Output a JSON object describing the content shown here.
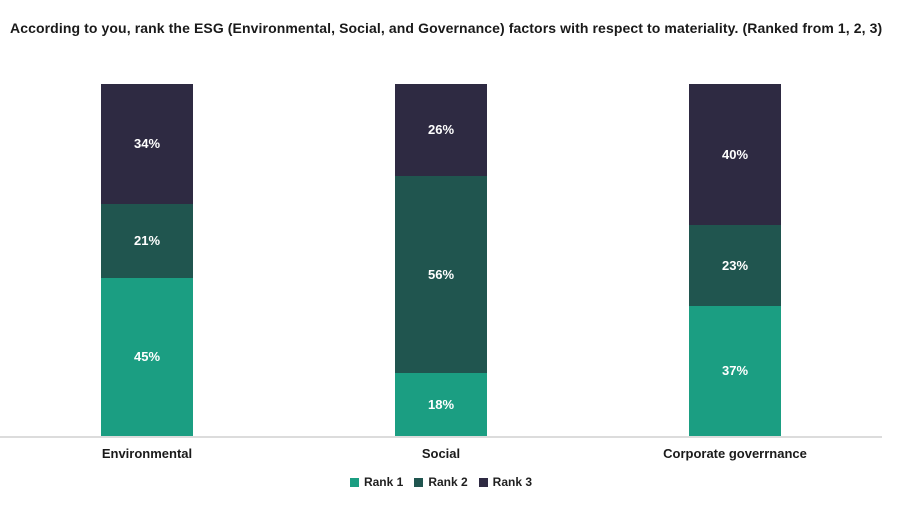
{
  "chart_data": {
    "type": "bar",
    "subtype": "stacked-column-100",
    "title": "According to you, rank the ESG (Environmental, Social, and Governance) factors with respect to materiality. (Ranked from 1, 2, 3)",
    "categories": [
      "Environmental",
      "Social",
      "Corporate goverrnance"
    ],
    "series": [
      {
        "name": "Rank 1",
        "color": "#1B9E82",
        "values": [
          45,
          18,
          37
        ]
      },
      {
        "name": "Rank 2",
        "color": "#20554F",
        "values": [
          21,
          56,
          23
        ]
      },
      {
        "name": "Rank 3",
        "color": "#2E2A42",
        "values": [
          34,
          26,
          40
        ]
      }
    ],
    "value_suffix": "%",
    "ylim": [
      0,
      100
    ],
    "grid": false,
    "legend_position": "bottom",
    "axis_line_color": "#DCDCDC",
    "data_label_color": "#FFFFFF",
    "background_color": "#FFFFFF"
  }
}
